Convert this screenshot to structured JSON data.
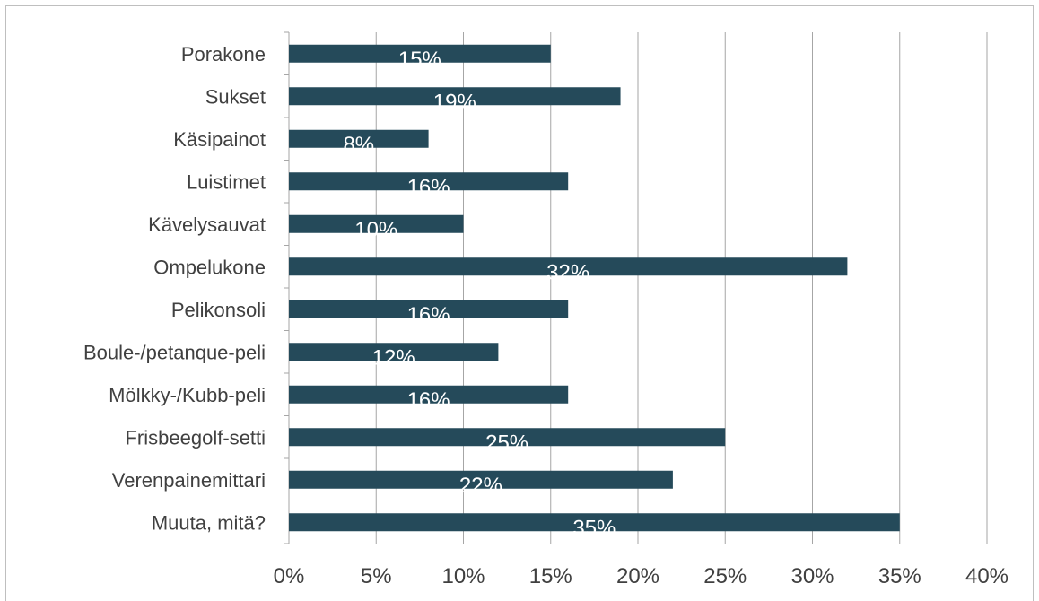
{
  "chart_data": {
    "type": "bar",
    "orientation": "horizontal",
    "categories": [
      "Porakone",
      "Sukset",
      "Käsipainot",
      "Luistimet",
      "Kävelysauvat",
      "Ompelukone",
      "Pelikonsoli",
      "Boule-/petanque-peli",
      "Mölkky-/Kubb-peli",
      "Frisbeegolf-setti",
      "Verenpainemittari",
      "Muuta, mitä?"
    ],
    "values": [
      15,
      19,
      8,
      16,
      10,
      32,
      16,
      12,
      16,
      25,
      22,
      35
    ],
    "data_labels": [
      "15%",
      "19%",
      "8%",
      "16%",
      "10%",
      "32%",
      "16%",
      "12%",
      "16%",
      "25%",
      "22%",
      "35%"
    ],
    "xlim": [
      0,
      40
    ],
    "x_ticks": [
      0,
      5,
      10,
      15,
      20,
      25,
      30,
      35,
      40
    ],
    "x_tick_labels": [
      "0%",
      "5%",
      "10%",
      "15%",
      "20%",
      "25%",
      "30%",
      "35%",
      "40%"
    ],
    "grid": "vertical",
    "legend": "none",
    "title": "",
    "xlabel": "",
    "ylabel": "",
    "colors": {
      "bar": "#254a5a",
      "grid": "#a6a6a6",
      "axis": "#a6a6a6",
      "text": "#404040",
      "data_label": "#ffffff"
    }
  }
}
